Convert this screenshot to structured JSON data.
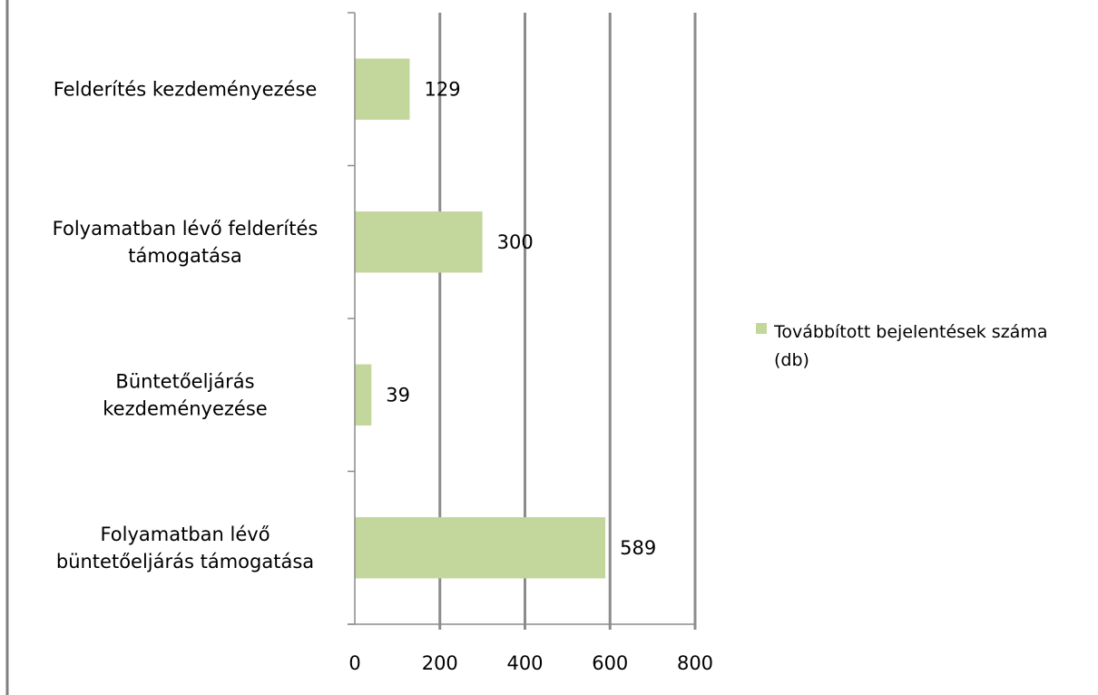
{
  "chart_data": {
    "type": "bar",
    "orientation": "horizontal",
    "categories": [
      [
        "Felderítés kezdeményezése"
      ],
      [
        "Folyamatban lévő felderítés",
        "támogatása"
      ],
      [
        "Büntetőeljárás",
        "kezdeményezése"
      ],
      [
        "Folyamatban lévő",
        "büntetőeljárás támogatása"
      ]
    ],
    "series": [
      {
        "name": "Továbbított bejelentések száma (db)",
        "values": [
          129,
          300,
          39,
          589
        ]
      }
    ],
    "xlim": [
      0,
      800
    ],
    "x_ticks": [
      "0",
      "200",
      "400",
      "600",
      "800"
    ],
    "grid": true,
    "legend_position": "right",
    "legend_lines": [
      "Továbbított bejelentések száma",
      "(db)"
    ],
    "colors": {
      "bar": "#c3d69b",
      "grid": "#8c8c8c",
      "axis": "#8c8c8c",
      "frame": "#808080"
    }
  }
}
